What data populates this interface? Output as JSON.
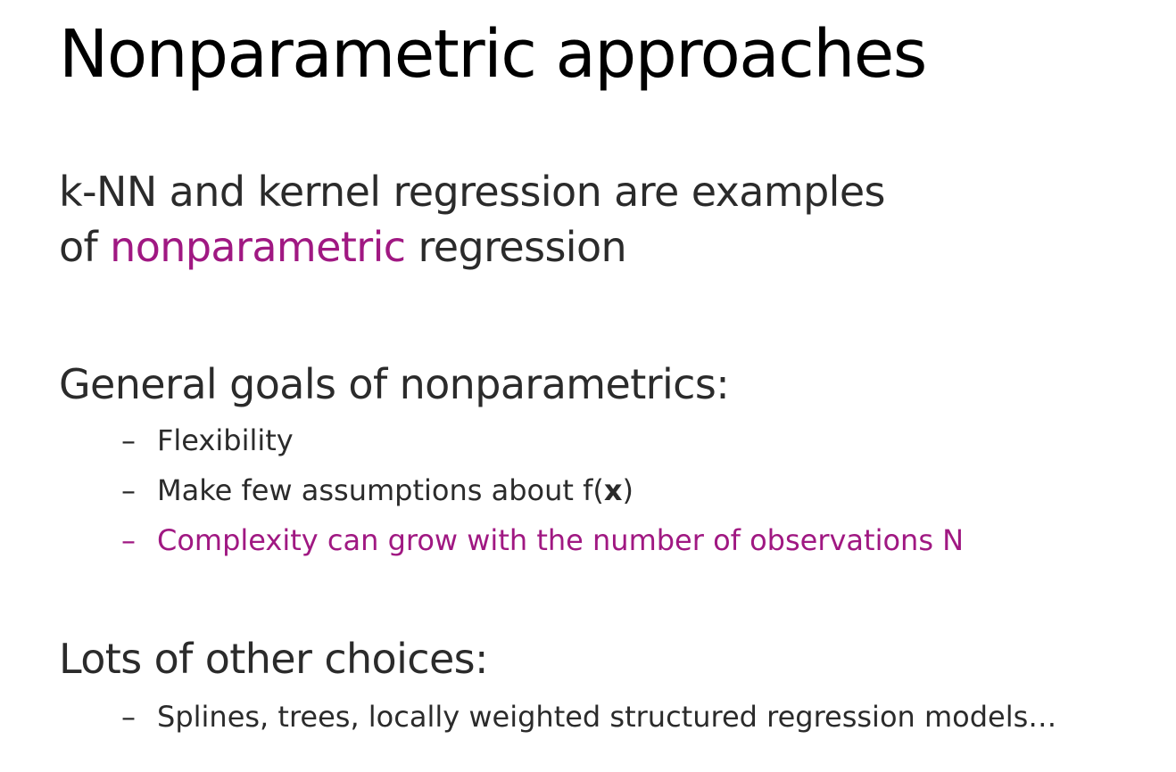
{
  "slide": {
    "title": "Nonparametric approaches",
    "intro": {
      "line1": "k-NN and kernel regression are examples",
      "line2_prefix": "of ",
      "line2_highlight": "nonparametric",
      "line2_suffix": " regression"
    },
    "goals": {
      "heading": "General goals of nonparametrics:",
      "items": [
        {
          "dash": "–",
          "text": "Flexibility"
        },
        {
          "dash": "–",
          "text_prefix": "Make few assumptions about f(",
          "text_bold": "x",
          "text_suffix": ")"
        },
        {
          "dash": "–",
          "text": "Complexity can grow with the number of observations N"
        }
      ]
    },
    "choices": {
      "heading": "Lots of other choices:",
      "items": [
        {
          "dash": "–",
          "text": "Splines, trees, locally weighted structured regression models…"
        }
      ]
    },
    "colors": {
      "accent": "#a01882",
      "text": "#2b2b2b",
      "title": "#000000"
    }
  }
}
